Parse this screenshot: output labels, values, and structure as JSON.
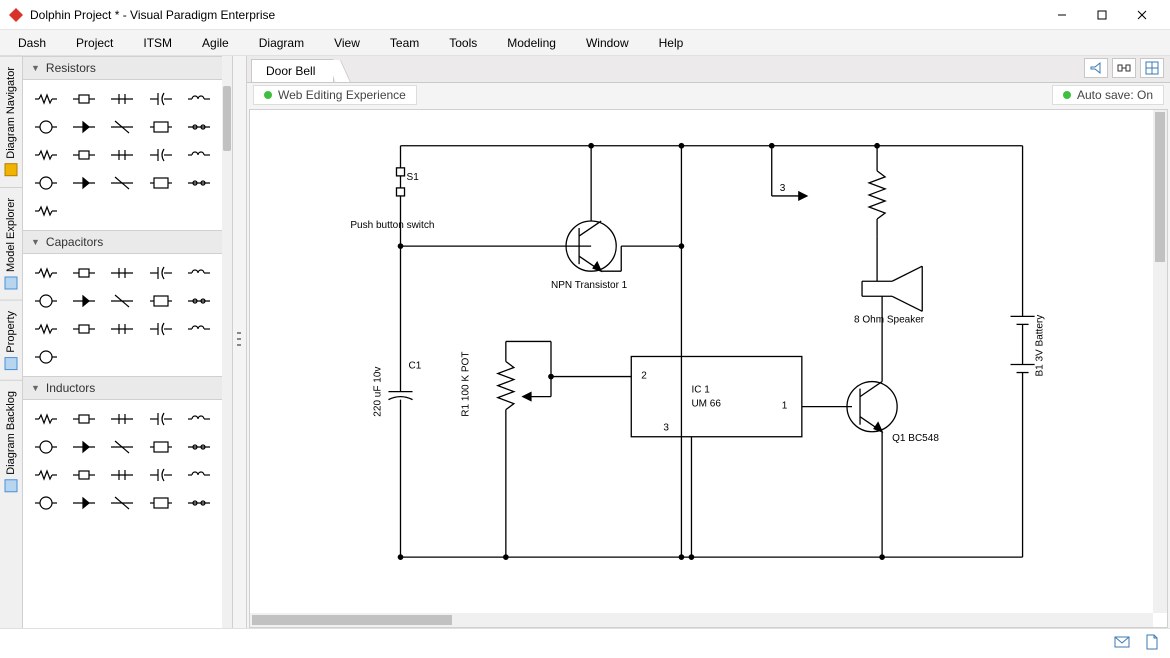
{
  "window": {
    "title": "Dolphin Project * - Visual Paradigm Enterprise",
    "logo_color": "#d9322a"
  },
  "menu": {
    "items": [
      "Dash",
      "Project",
      "ITSM",
      "Agile",
      "Diagram",
      "View",
      "Team",
      "Tools",
      "Modeling",
      "Window",
      "Help"
    ]
  },
  "side_tabs": [
    {
      "label": "Diagram Navigator",
      "icon_color": "#f0b400"
    },
    {
      "label": "Model Explorer",
      "icon_color": "#4a90d9"
    },
    {
      "label": "Property",
      "icon_color": "#4a90d9"
    },
    {
      "label": "Diagram Backlog",
      "icon_color": "#4a90d9"
    }
  ],
  "palette": {
    "sections": [
      {
        "title": "Resistors",
        "rows": 4,
        "extra_cells": 1
      },
      {
        "title": "Capacitors",
        "rows": 3,
        "extra_cells": 1
      },
      {
        "title": "Inductors",
        "rows": 3,
        "extra_cells": 5
      }
    ]
  },
  "tab": {
    "label": "Door Bell"
  },
  "status": {
    "left": "Web Editing Experience",
    "right": "Auto save: On",
    "indicator_color": "#3fbf3f"
  },
  "circuit": {
    "stroke": "#000000",
    "labels": {
      "s1": "S1",
      "pushbtn": "Push button switch",
      "npn": "NPN Transistor 1",
      "c1": "C1",
      "cval": "220 uF 10v",
      "r1": "R1 100 K POT",
      "ic1a": "IC 1",
      "ic1b": "UM 66",
      "pin1": "1",
      "pin2": "2",
      "pin3": "3",
      "wire3": "3",
      "q1": "Q1 BC548",
      "spk": "8 Ohm Speaker",
      "bat": "B1 3V Battery"
    }
  },
  "colors": {
    "toolbar_icon": "#3a78b5",
    "mail_icon": "#3a78b5",
    "doc_icon": "#3a78b5"
  }
}
